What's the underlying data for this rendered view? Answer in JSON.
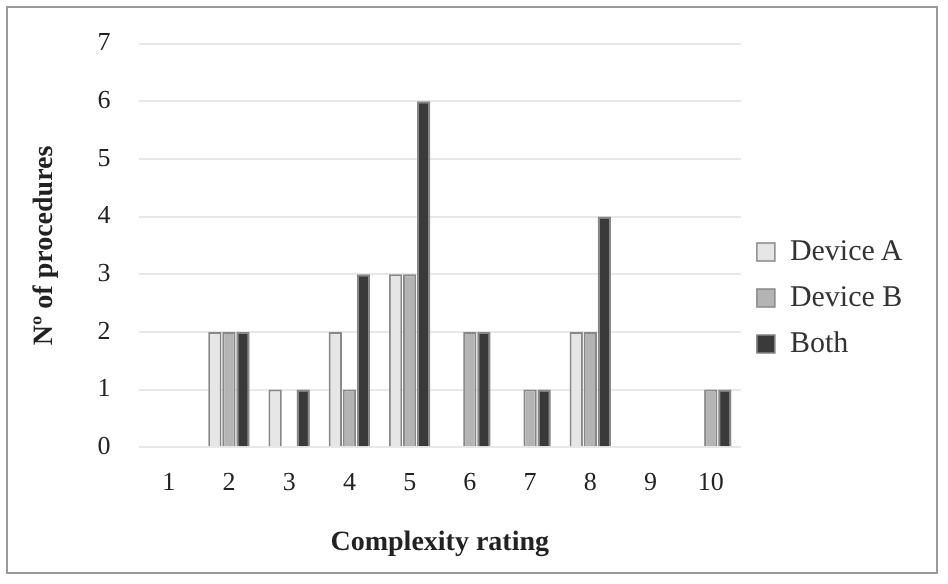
{
  "chart_data": {
    "type": "bar",
    "xlabel": "Complexity rating",
    "ylabel": "Nº of procedures",
    "categories": [
      "1",
      "2",
      "3",
      "4",
      "5",
      "6",
      "7",
      "8",
      "9",
      "10"
    ],
    "series": [
      {
        "name": "Device A",
        "color": "#e6e6e6",
        "values": [
          0,
          2,
          1,
          2,
          3,
          0,
          0,
          2,
          0,
          0
        ]
      },
      {
        "name": "Device B",
        "color": "#b4b4b4",
        "values": [
          0,
          2,
          0,
          1,
          3,
          2,
          1,
          2,
          0,
          1
        ]
      },
      {
        "name": "Both",
        "color": "#3a3a3a",
        "values": [
          0,
          2,
          1,
          3,
          6,
          2,
          1,
          4,
          0,
          1
        ]
      }
    ],
    "ylim": [
      0,
      7
    ],
    "yticks": [
      0,
      1,
      2,
      3,
      4,
      5,
      6,
      7
    ],
    "grid": "y",
    "legend": "right"
  }
}
